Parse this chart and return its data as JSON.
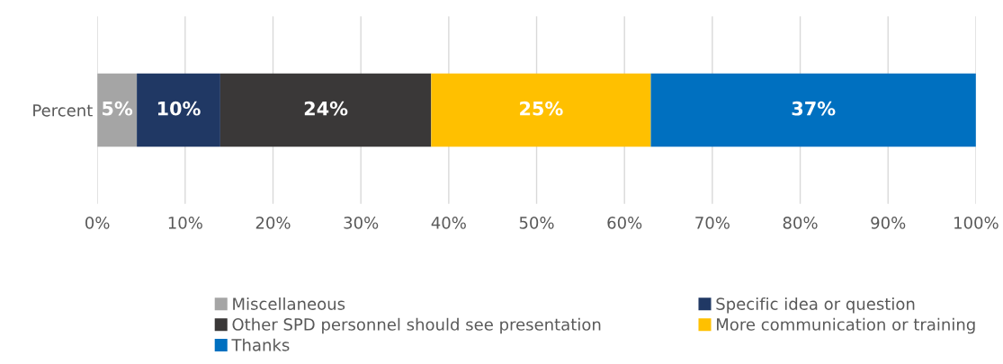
{
  "chart_data": {
    "type": "bar",
    "orientation": "horizontal",
    "stacked": true,
    "categories": [
      "Percent"
    ],
    "series": [
      {
        "name": "Miscellaneous",
        "color": "#a5a5a5",
        "values": [
          4.5
        ],
        "value_labels": [
          "5%"
        ]
      },
      {
        "name": "Specific idea or question",
        "color": "#203864",
        "values": [
          9.5
        ],
        "value_labels": [
          "10%"
        ]
      },
      {
        "name": "Other SPD personnel should see presentation",
        "color": "#3a3838",
        "values": [
          24
        ],
        "value_labels": [
          "24%"
        ]
      },
      {
        "name": "More communication or training",
        "color": "#ffc000",
        "values": [
          25
        ],
        "value_labels": [
          "25%"
        ]
      },
      {
        "name": "Thanks",
        "color": "#0070c0",
        "values": [
          37
        ],
        "value_labels": [
          "37%"
        ]
      }
    ],
    "xlim": [
      0,
      100
    ],
    "xticks": [
      {
        "value": 0,
        "label": "0%"
      },
      {
        "value": 10,
        "label": "10%"
      },
      {
        "value": 20,
        "label": "20%"
      },
      {
        "value": 30,
        "label": "30%"
      },
      {
        "value": 40,
        "label": "40%"
      },
      {
        "value": 50,
        "label": "50%"
      },
      {
        "value": 60,
        "label": "60%"
      },
      {
        "value": 70,
        "label": "70%"
      },
      {
        "value": 80,
        "label": "80%"
      },
      {
        "value": 90,
        "label": "90%"
      },
      {
        "value": 100,
        "label": "100%"
      }
    ],
    "grid": "x",
    "legend": "bottom"
  }
}
